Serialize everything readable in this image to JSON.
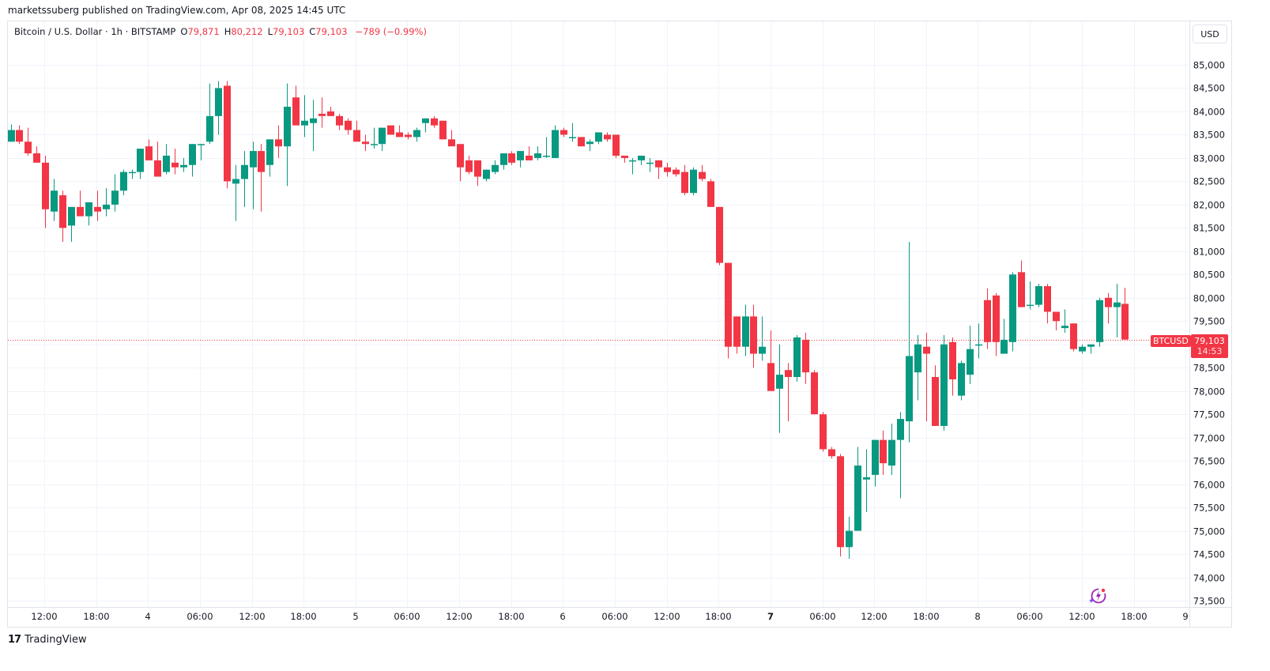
{
  "header": {
    "published": "marketssuberg published on TradingView.com, Apr 08, 2025 14:45 UTC"
  },
  "legend": {
    "symbol": "Bitcoin / U.S. Dollar · 1h · BITSTAMP",
    "open_label": "O",
    "open": "79,871",
    "high_label": "H",
    "high": "80,212",
    "low_label": "L",
    "low": "79,103",
    "close_label": "C",
    "close": "79,103",
    "change": "−789 (−0.99%)"
  },
  "currency_button": "USD",
  "price_tag": {
    "symbol": "BTCUSD",
    "price": "79,103",
    "countdown": "14:53"
  },
  "footer": {
    "brand": "TradingView",
    "mark": "17"
  },
  "colors": {
    "up": "#089981",
    "down": "#f23645",
    "grid": "#f0f3fa",
    "axis_text": "#131722"
  },
  "chart_data": {
    "type": "candlestick",
    "title": "Bitcoin / U.S. Dollar · 1h · BITSTAMP",
    "xlabel": "",
    "ylabel": "USD",
    "ylim": [
      73300,
      85500
    ],
    "grid": true,
    "y_ticks": [
      "85,000",
      "84,500",
      "84,000",
      "83,500",
      "83,000",
      "82,500",
      "82,000",
      "81,500",
      "81,000",
      "80,500",
      "80,000",
      "79,500",
      "79,000",
      "78,500",
      "78,000",
      "77,500",
      "77,000",
      "76,500",
      "76,000",
      "75,500",
      "75,000",
      "74,500",
      "74,000",
      "73,500"
    ],
    "x_ticks": [
      {
        "label": "12:00",
        "x": 56
      },
      {
        "label": "18:00",
        "x": 122
      },
      {
        "label": "4",
        "x": 187
      },
      {
        "label": "06:00",
        "x": 253
      },
      {
        "label": "12:00",
        "x": 319
      },
      {
        "label": "18:00",
        "x": 384
      },
      {
        "label": "5",
        "x": 450
      },
      {
        "label": "06:00",
        "x": 515
      },
      {
        "label": "12:00",
        "x": 581
      },
      {
        "label": "18:00",
        "x": 647
      },
      {
        "label": "6",
        "x": 712
      },
      {
        "label": "06:00",
        "x": 778
      },
      {
        "label": "12:00",
        "x": 844
      },
      {
        "label": "18:00",
        "x": 909
      },
      {
        "label": "7",
        "x": 975,
        "bold": true
      },
      {
        "label": "06:00",
        "x": 1041
      },
      {
        "label": "12:00",
        "x": 1106
      },
      {
        "label": "18:00",
        "x": 1172
      },
      {
        "label": "8",
        "x": 1237
      },
      {
        "label": "06:00",
        "x": 1303
      },
      {
        "label": "12:00",
        "x": 1369
      },
      {
        "label": "18:00",
        "x": 1435
      },
      {
        "label": "9",
        "x": 1500
      }
    ],
    "last_price": 79103,
    "candles_ohlc": [
      [
        83350,
        83720,
        83350,
        83600
      ],
      [
        83600,
        83700,
        83300,
        83350
      ],
      [
        83350,
        83650,
        83050,
        83100
      ],
      [
        83100,
        83250,
        82950,
        82900
      ],
      [
        82900,
        83050,
        81500,
        81900
      ],
      [
        81850,
        82550,
        81650,
        82300
      ],
      [
        82200,
        82300,
        81200,
        81500
      ],
      [
        81550,
        81950,
        81200,
        81950
      ],
      [
        81950,
        82300,
        81800,
        81750
      ],
      [
        81750,
        82050,
        81550,
        82050
      ],
      [
        81950,
        82300,
        81650,
        81850
      ],
      [
        81900,
        82350,
        81750,
        82000
      ],
      [
        82000,
        82650,
        81850,
        82300
      ],
      [
        82300,
        82750,
        82200,
        82700
      ],
      [
        82700,
        82750,
        82550,
        82700
      ],
      [
        82700,
        83150,
        82550,
        83200
      ],
      [
        83250,
        83400,
        83150,
        82950
      ],
      [
        82950,
        83350,
        82600,
        82600
      ],
      [
        82700,
        83300,
        82650,
        83050
      ],
      [
        82900,
        83200,
        82650,
        82800
      ],
      [
        82800,
        83000,
        82700,
        82850
      ],
      [
        82850,
        83300,
        82600,
        83300
      ],
      [
        83300,
        83300,
        82950,
        83300
      ],
      [
        83350,
        84600,
        83300,
        83900
      ],
      [
        83900,
        84650,
        83500,
        84500
      ],
      [
        84550,
        84650,
        82350,
        82500
      ],
      [
        82450,
        82850,
        81650,
        82550
      ],
      [
        82550,
        83150,
        81950,
        82850
      ],
      [
        82800,
        83350,
        81900,
        83150
      ],
      [
        83150,
        83300,
        81850,
        82700
      ],
      [
        82850,
        83350,
        82600,
        83400
      ],
      [
        83400,
        83700,
        83000,
        83250
      ],
      [
        83250,
        84600,
        82400,
        84100
      ],
      [
        84300,
        84550,
        83950,
        83700
      ],
      [
        83700,
        84350,
        83450,
        83800
      ],
      [
        83750,
        84250,
        83150,
        83850
      ],
      [
        83950,
        84300,
        83650,
        83900
      ],
      [
        84000,
        84100,
        83900,
        83900
      ],
      [
        83900,
        83950,
        83600,
        83700
      ],
      [
        83800,
        83850,
        83500,
        83600
      ],
      [
        83600,
        83800,
        83550,
        83350
      ],
      [
        83350,
        83500,
        83150,
        83300
      ],
      [
        83300,
        83650,
        83200,
        83300
      ],
      [
        83300,
        83550,
        83150,
        83650
      ],
      [
        83700,
        83700,
        83500,
        83500
      ],
      [
        83550,
        83700,
        83450,
        83450
      ],
      [
        83500,
        83550,
        83400,
        83450
      ],
      [
        83450,
        83650,
        83350,
        83600
      ],
      [
        83750,
        83850,
        83550,
        83850
      ],
      [
        83850,
        83900,
        83650,
        83700
      ],
      [
        83800,
        83800,
        83400,
        83400
      ],
      [
        83400,
        83600,
        83300,
        83250
      ],
      [
        83300,
        83150,
        82500,
        82800
      ],
      [
        82950,
        83050,
        82650,
        82700
      ],
      [
        82950,
        82750,
        82400,
        82600
      ],
      [
        82550,
        82600,
        82500,
        82750
      ],
      [
        82700,
        82950,
        82650,
        82850
      ],
      [
        82850,
        83050,
        82750,
        83100
      ],
      [
        83100,
        83150,
        82850,
        82900
      ],
      [
        82950,
        83150,
        82800,
        83150
      ],
      [
        83050,
        83250,
        82950,
        82950
      ],
      [
        83000,
        83250,
        82950,
        83100
      ],
      [
        83050,
        83450,
        83000,
        83050
      ],
      [
        83000,
        83700,
        83050,
        83600
      ],
      [
        83600,
        83650,
        83450,
        83500
      ],
      [
        83450,
        83750,
        83350,
        83450
      ],
      [
        83450,
        83400,
        83250,
        83250
      ],
      [
        83300,
        83400,
        83150,
        83350
      ],
      [
        83350,
        83550,
        83300,
        83550
      ],
      [
        83500,
        83550,
        83350,
        83400
      ],
      [
        83500,
        83400,
        83000,
        83050
      ],
      [
        83050,
        83050,
        82900,
        83000
      ],
      [
        82950,
        83000,
        82650,
        82950
      ],
      [
        82950,
        83050,
        82850,
        83050
      ],
      [
        82900,
        83000,
        82700,
        82900
      ],
      [
        82950,
        82700,
        82550,
        82800
      ],
      [
        82800,
        82900,
        82600,
        82700
      ],
      [
        82750,
        82800,
        82600,
        82650
      ],
      [
        82700,
        82850,
        82200,
        82250
      ],
      [
        82250,
        82800,
        82200,
        82750
      ],
      [
        82700,
        82850,
        82500,
        82550
      ],
      [
        82500,
        82550,
        81950,
        81950
      ],
      [
        81950,
        81950,
        80700,
        80750
      ],
      [
        80750,
        80600,
        78700,
        78950
      ],
      [
        79600,
        79600,
        78800,
        78950
      ],
      [
        78950,
        79850,
        78750,
        79600
      ],
      [
        79600,
        79850,
        78500,
        78800
      ],
      [
        78800,
        79600,
        78650,
        78950
      ],
      [
        78600,
        79300,
        78000,
        78000
      ],
      [
        78050,
        79000,
        77100,
        78350
      ],
      [
        78450,
        78600,
        77350,
        78300
      ],
      [
        78300,
        79200,
        78200,
        79150
      ],
      [
        79100,
        79250,
        78150,
        78400
      ],
      [
        78400,
        78450,
        77600,
        77500
      ],
      [
        77500,
        77550,
        76700,
        76750
      ],
      [
        76750,
        76800,
        76550,
        76600
      ],
      [
        76600,
        76650,
        74450,
        74650
      ],
      [
        74650,
        75300,
        74400,
        75000
      ],
      [
        75000,
        76800,
        75000,
        76400
      ],
      [
        76100,
        76750,
        75400,
        76150
      ],
      [
        76200,
        76850,
        75950,
        76950
      ],
      [
        76950,
        77150,
        76200,
        76450
      ],
      [
        76400,
        77300,
        76200,
        76950
      ],
      [
        76950,
        77550,
        75700,
        77400
      ],
      [
        77350,
        81200,
        76900,
        78750
      ],
      [
        78400,
        79200,
        77800,
        79000
      ],
      [
        78950,
        79250,
        77350,
        78800
      ],
      [
        78300,
        78550,
        77250,
        77250
      ],
      [
        77250,
        79200,
        77150,
        79000
      ],
      [
        79050,
        79150,
        77900,
        78250
      ],
      [
        77900,
        78650,
        77800,
        78600
      ],
      [
        78350,
        79400,
        78150,
        78900
      ],
      [
        79000,
        79450,
        78700,
        79000
      ],
      [
        79950,
        80200,
        78900,
        79050
      ],
      [
        80050,
        80100,
        78750,
        79050
      ],
      [
        78800,
        79550,
        79050,
        79100
      ],
      [
        79050,
        80550,
        78850,
        80500
      ],
      [
        80550,
        80800,
        79900,
        79800
      ],
      [
        79850,
        80350,
        79750,
        79850
      ],
      [
        79850,
        80300,
        79800,
        80250
      ],
      [
        80250,
        80300,
        79450,
        79700
      ],
      [
        79700,
        79700,
        79300,
        79500
      ],
      [
        79350,
        79750,
        79250,
        79400
      ],
      [
        79450,
        79450,
        78850,
        78900
      ],
      [
        78850,
        79000,
        78800,
        78950
      ],
      [
        78950,
        79000,
        78800,
        79000
      ],
      [
        79050,
        80000,
        78950,
        79950
      ],
      [
        80000,
        80100,
        79450,
        79800
      ],
      [
        79800,
        80300,
        79150,
        79900
      ],
      [
        79871,
        80212,
        79103,
        79103
      ]
    ]
  }
}
